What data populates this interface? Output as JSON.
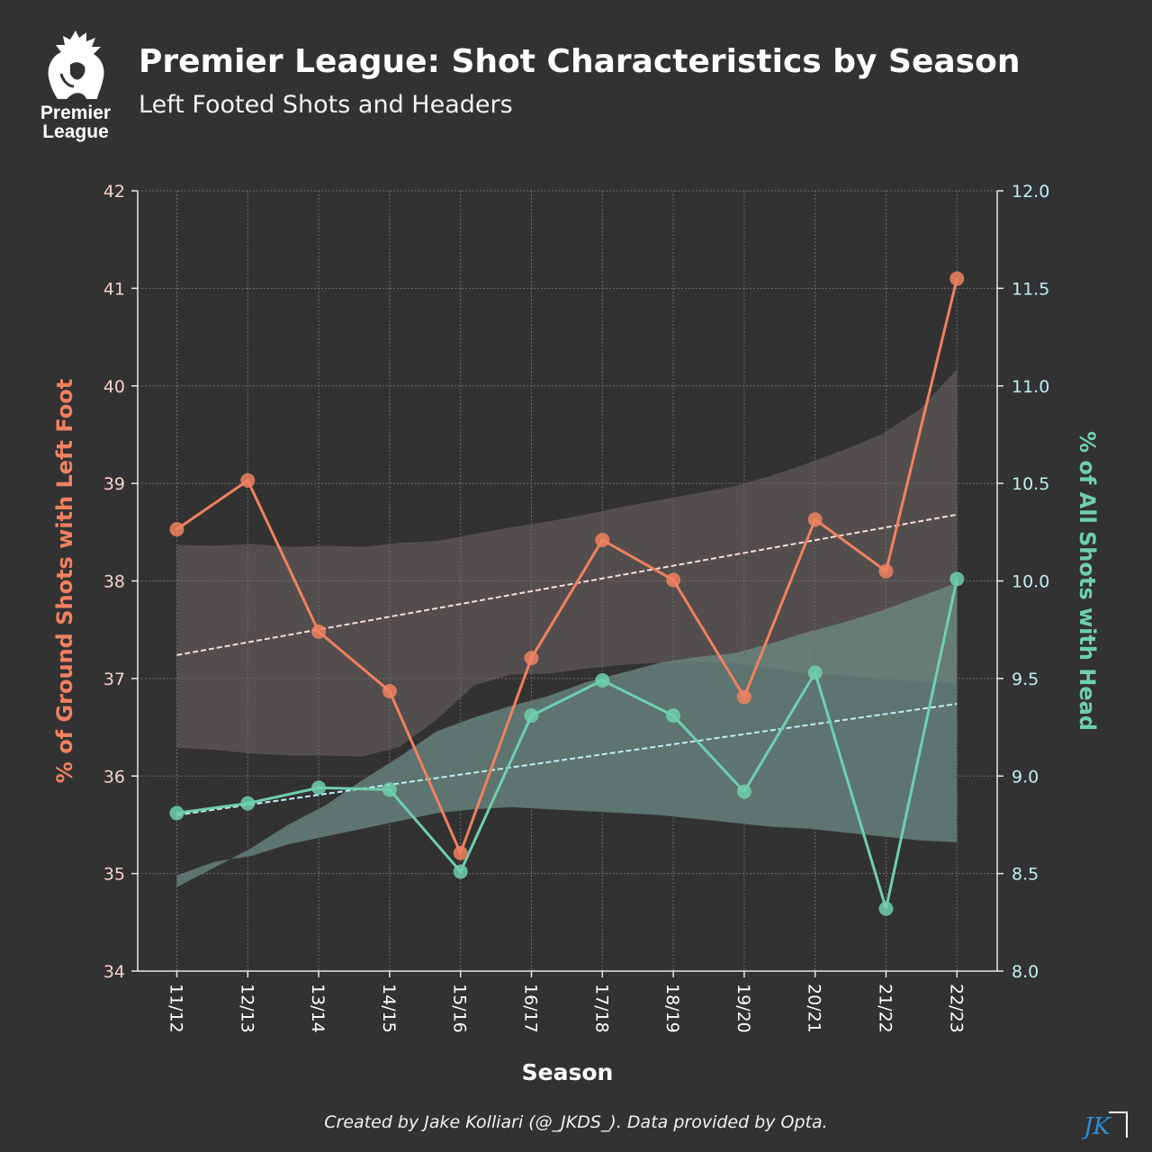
{
  "header": {
    "title": "Premier League: Shot Characteristics by Season",
    "subtitle": "Left Footed Shots and Headers",
    "logo_text_line1": "Premier",
    "logo_text_line2": "League",
    "logo_icon": "premier-league-lion-icon"
  },
  "footer": {
    "credit": "Created by Jake Kolliari (@_JKDS_). Data provided by Opta.",
    "mark_text": "JK"
  },
  "colors": {
    "background": "#323232",
    "left_series": "#f08160",
    "right_series": "#6fcfae",
    "left_trend": "#f5dede",
    "right_trend": "#bfeff5",
    "left_axis_text": "#f5d3c8",
    "right_axis_text": "#bfeff5",
    "grid": "#6c6c6c",
    "left_band": "#5a5252",
    "right_band": "#6d8b86",
    "jk_mark": "#2a8fd4"
  },
  "chart_data": {
    "type": "line",
    "xlabel": "Season",
    "categories": [
      "11/12",
      "12/13",
      "13/14",
      "14/15",
      "15/16",
      "16/17",
      "17/18",
      "18/19",
      "19/20",
      "20/21",
      "21/22",
      "22/23"
    ],
    "y_left": {
      "label": "% of Ground Shots with Left Foot",
      "lim": [
        34,
        42
      ],
      "ticks": [
        "34",
        "35",
        "36",
        "37",
        "38",
        "39",
        "40",
        "41",
        "42"
      ]
    },
    "y_right": {
      "label": "% of All Shots with Head",
      "lim": [
        8.0,
        12.0
      ],
      "ticks": [
        "8.0",
        "8.5",
        "9.0",
        "9.5",
        "10.0",
        "10.5",
        "11.0",
        "11.5",
        "12.0"
      ]
    },
    "grid": true,
    "series": [
      {
        "axis": "left",
        "values": [
          38.53,
          39.03,
          37.48,
          36.87,
          35.21,
          37.21,
          38.42,
          38.01,
          36.81,
          38.63,
          38.1,
          41.1
        ],
        "trend": [
          37.24,
          38.68
        ],
        "band_upper": [
          38.37,
          38.36,
          38.38,
          38.35,
          38.36,
          38.35,
          38.39,
          38.41,
          38.48,
          38.55,
          38.61,
          38.68,
          38.76,
          38.83,
          38.9,
          38.97,
          39.08,
          39.21,
          39.35,
          39.51,
          39.76,
          40.17
        ],
        "band_lower": [
          36.29,
          36.27,
          36.23,
          36.21,
          36.21,
          36.2,
          36.3,
          36.58,
          36.93,
          37.04,
          37.05,
          37.1,
          37.14,
          37.16,
          37.17,
          37.16,
          37.1,
          37.05,
          37.03,
          36.99,
          36.97,
          36.95
        ]
      },
      {
        "axis": "right",
        "values": [
          8.81,
          8.86,
          8.94,
          8.93,
          8.51,
          9.31,
          9.49,
          9.31,
          8.92,
          9.53,
          8.32,
          10.01
        ],
        "trend": [
          8.8,
          9.37
        ],
        "band_upper": [
          8.43,
          8.53,
          8.63,
          8.75,
          8.85,
          8.98,
          9.1,
          9.23,
          9.3,
          9.36,
          9.41,
          9.48,
          9.53,
          9.58,
          9.61,
          9.63,
          9.68,
          9.74,
          9.79,
          9.85,
          9.92,
          9.99
        ],
        "band_lower": [
          8.49,
          8.56,
          8.59,
          8.65,
          8.69,
          8.73,
          8.77,
          8.81,
          8.83,
          8.84,
          8.83,
          8.82,
          8.81,
          8.8,
          8.78,
          8.76,
          8.74,
          8.73,
          8.71,
          8.69,
          8.67,
          8.66
        ]
      }
    ]
  }
}
